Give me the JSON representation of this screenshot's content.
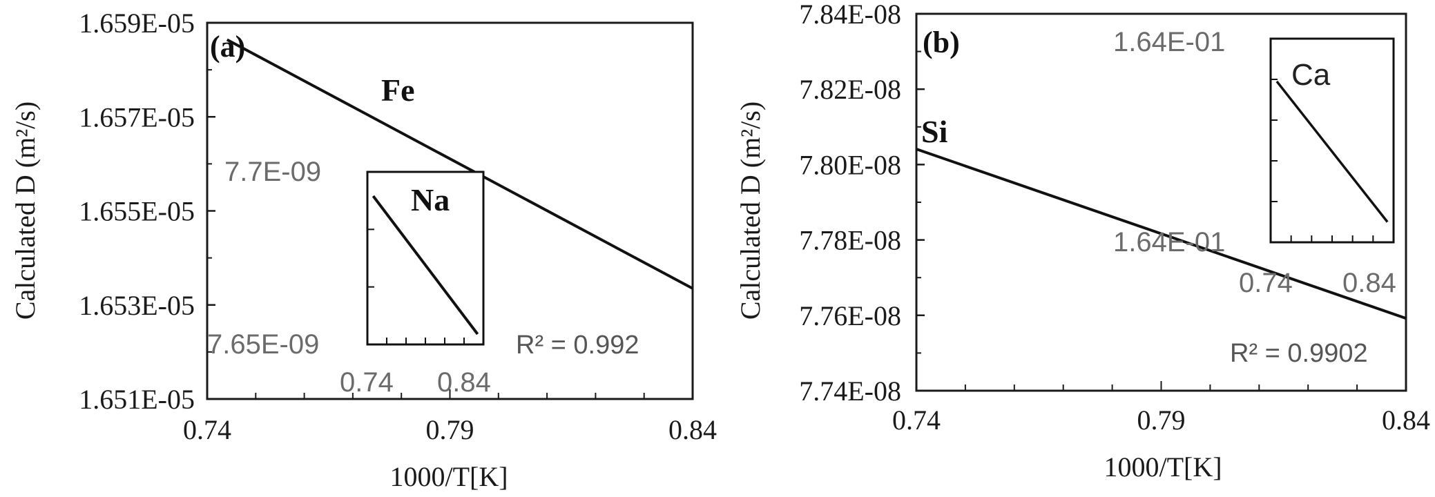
{
  "chart_data": [
    {
      "type": "line",
      "panel_label": "(a)",
      "series_label": "Fe",
      "xlabel": "1000/T[K]",
      "ylabel": "Calculated D (m²/s)",
      "xlim": [
        0.74,
        0.84
      ],
      "ylim": [
        1.651e-05,
        1.659e-05
      ],
      "x_ticks": [
        "0.74",
        "0.79",
        "0.84"
      ],
      "y_ticks": [
        "1.651E-05",
        "1.653E-05",
        "1.655E-05",
        "1.657E-05",
        "1.659E-05"
      ],
      "series": [
        {
          "name": "Fe",
          "x": [
            0.7441,
            0.84
          ],
          "y": [
            1.65864e-05,
            1.65335e-05
          ]
        }
      ],
      "inset": {
        "series_label": "Na",
        "x_ticks": [
          "0.74",
          "0.84"
        ],
        "y_ticks": [
          "7.65E-09",
          "7.7E-09"
        ],
        "r_squared": "R² = 0.992",
        "series": [
          {
            "name": "Na",
            "x": [
              0.745,
              0.835
            ],
            "y": [
              0.86,
              0.06
            ]
          }
        ]
      }
    },
    {
      "type": "line",
      "panel_label": "(b)",
      "series_label": "Si",
      "xlabel": "1000/T[K]",
      "ylabel": "Calculated D (m²/s)",
      "xlim": [
        0.74,
        0.84
      ],
      "ylim": [
        7.74e-08,
        7.84e-08
      ],
      "x_ticks": [
        "0.74",
        "0.79",
        "0.84"
      ],
      "y_ticks": [
        "7.74E-08",
        "7.76E-08",
        "7.78E-08",
        "7.80E-08",
        "7.82E-08",
        "7.84E-08"
      ],
      "series": [
        {
          "name": "Si",
          "x": [
            0.74,
            0.84
          ],
          "y": [
            7.8041e-08,
            7.7592e-08
          ]
        }
      ],
      "inset": {
        "series_label": "Ca",
        "x_ticks": [
          "0.74",
          "0.84"
        ],
        "y_ticks": [
          "1.64E-01",
          "1.64E-01"
        ],
        "r_squared": "R² = 0.9902",
        "series": [
          {
            "name": "Ca",
            "x": [
              0.745,
              0.835
            ],
            "y": [
              0.79,
              0.1
            ]
          }
        ]
      }
    }
  ]
}
